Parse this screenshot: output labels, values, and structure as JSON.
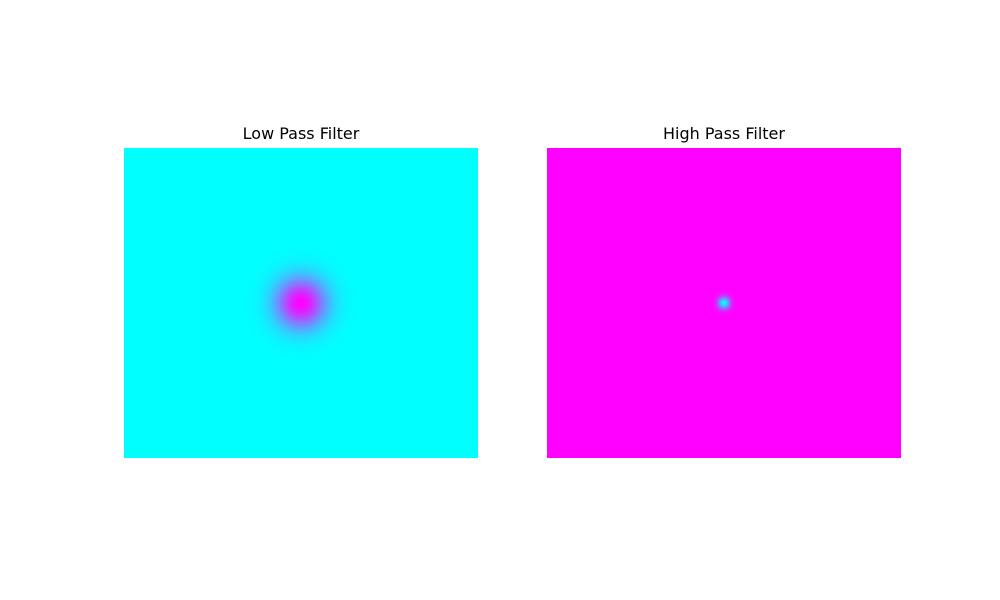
{
  "chart_data": [
    {
      "type": "heatmap",
      "title": "Low Pass Filter",
      "colormap": "cool",
      "colormap_stops": [
        "#00ffff",
        "#ff00ff"
      ],
      "value_range": [
        0,
        1
      ],
      "background_value": 0,
      "center_value": 1,
      "center": [
        0.5,
        0.5
      ],
      "gaussian_sigma": 0.05,
      "axes_visible": false
    },
    {
      "type": "heatmap",
      "title": "High Pass Filter",
      "colormap": "cool",
      "colormap_stops": [
        "#00ffff",
        "#ff00ff"
      ],
      "value_range": [
        0,
        1
      ],
      "background_value": 1,
      "center_value": 0,
      "center": [
        0.5,
        0.5
      ],
      "gaussian_sigma": 0.012,
      "axes_visible": false
    }
  ]
}
